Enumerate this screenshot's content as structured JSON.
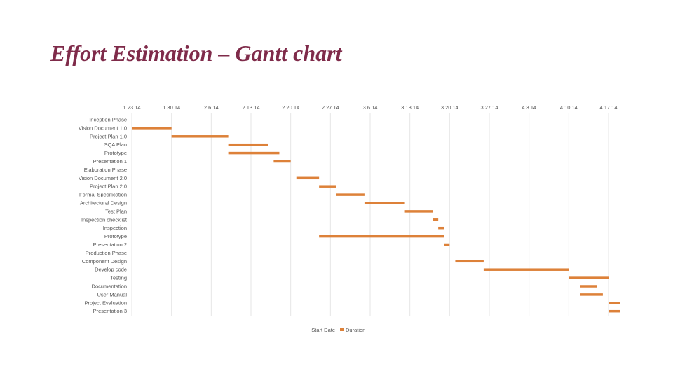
{
  "slide": {
    "title": "Effort Estimation – Gantt chart"
  },
  "chart_data": {
    "type": "bar",
    "orientation": "horizontal-stacked",
    "x_axis_position": "top",
    "x_ticks": [
      "1.23.14",
      "1.30.14",
      "2.6.14",
      "2.13.14",
      "2.20.14",
      "2.27.14",
      "3.6.14",
      "3.13.14",
      "3.20.14",
      "3.27.14",
      "4.3.14",
      "4.10.14",
      "4.17.14"
    ],
    "xlim": [
      "2014-01-23",
      "2014-04-17"
    ],
    "grid": true,
    "legend": {
      "placement": "bottom",
      "entries": [
        "Start Date",
        "Duration"
      ]
    },
    "colors": {
      "duration": "#dd8139",
      "grid": "#e6e6e6"
    },
    "categories": [
      "Inception Phase",
      "Vision Document 1.0",
      "Project Plan 1.0",
      "SQA Plan",
      "Prototype",
      "Presentation 1",
      "Elaboration Phase",
      "Vision Document 2.0",
      "Project Plan 2.0",
      "Formal Specification",
      "Architectural Design",
      "Test Plan",
      "Inspection checklist",
      "Inspection",
      "Prototype",
      "Presentation 2",
      "Production Phase",
      "Component Design",
      "Develop code",
      "Testing",
      "Documentation",
      "User Manual",
      "Project Evaluation",
      "Presentation 3"
    ],
    "series": [
      {
        "name": "Start Date",
        "values": [
          null,
          "2014-01-23",
          "2014-01-30",
          "2014-02-09",
          "2014-02-09",
          "2014-02-17",
          null,
          "2014-02-21",
          "2014-02-25",
          "2014-02-28",
          "2014-03-05",
          "2014-03-12",
          "2014-03-17",
          "2014-03-18",
          "2014-02-25",
          "2014-03-19",
          null,
          "2014-03-21",
          "2014-03-26",
          "2014-04-10",
          "2014-04-12",
          "2014-04-12",
          "2014-04-17",
          "2014-04-17"
        ]
      },
      {
        "name": "Duration",
        "values": [
          0,
          7,
          10,
          7,
          9,
          3,
          0,
          4,
          3,
          5,
          7,
          5,
          1,
          1,
          22,
          1,
          0,
          5,
          15,
          7,
          3,
          4,
          2,
          2
        ]
      }
    ]
  }
}
